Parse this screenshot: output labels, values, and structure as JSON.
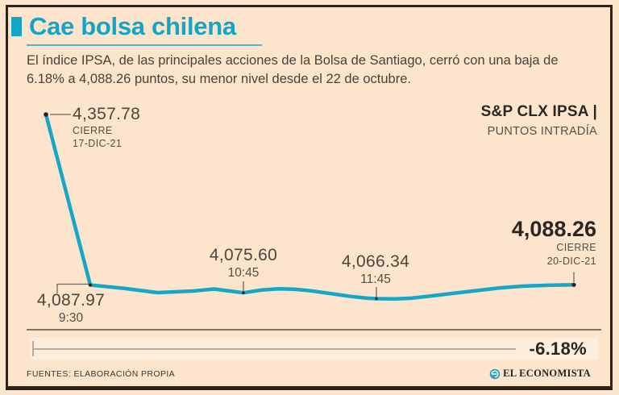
{
  "header": {
    "title": "Cae bolsa chilena",
    "subtitle": "El índice IPSA, de las principales acciones de la Bolsa de Santiago, cerró con una baja de 6.18% a 4,088.26 puntos, su menor nivel desde el 22 de octubre."
  },
  "chart_header": {
    "index_name": "S&P CLX IPSA",
    "separator": " |",
    "units_label": "PUNTOS INTRADÍA"
  },
  "chart_data": {
    "type": "line",
    "title": "S&P CLX IPSA",
    "ylabel": "PUNTOS INTRADÍA",
    "line_color": "#16a6c6",
    "grid": false,
    "legend": "none",
    "labeled_points": [
      {
        "value": 4357.78,
        "label": "4,357.78",
        "note1": "CIERRE",
        "note2": "17-DIC-21"
      },
      {
        "value": 4087.97,
        "label": "4,087.97",
        "time": "9:30"
      },
      {
        "value": 4075.6,
        "label": "4,075.60",
        "time": "10:45"
      },
      {
        "value": 4066.34,
        "label": "4,066.34",
        "time": "11:45"
      },
      {
        "value": 4088.26,
        "label": "4,088.26",
        "note1": "CIERRE",
        "note2": "20-DIC-21"
      }
    ],
    "annotations": {
      "peak": {
        "value": "4,357.78",
        "line1": "CIERRE",
        "line2": "17-DIC-21"
      },
      "open": {
        "value": "4,087.97",
        "time": "9:30"
      },
      "mid1": {
        "value": "4,075.60",
        "time": "10:45"
      },
      "mid2": {
        "value": "4,066.34",
        "time": "11:45"
      },
      "close": {
        "value": "4,088.26",
        "line1": "CIERRE",
        "line2": "20-DIC-21"
      }
    },
    "change_pct": "-6.18%",
    "ylim": [
      4060,
      4360
    ],
    "profile": [
      [
        0.0,
        4357.78
      ],
      [
        0.084,
        4087.97
      ],
      [
        0.15,
        4082.3
      ],
      [
        0.211,
        4075.9
      ],
      [
        0.279,
        4078.4
      ],
      [
        0.319,
        4081.6
      ],
      [
        0.348,
        4078.4
      ],
      [
        0.374,
        4075.6
      ],
      [
        0.409,
        4080.1
      ],
      [
        0.44,
        4082.0
      ],
      [
        0.47,
        4081.4
      ],
      [
        0.501,
        4078.8
      ],
      [
        0.539,
        4074.4
      ],
      [
        0.577,
        4069.9
      ],
      [
        0.608,
        4067.0
      ],
      [
        0.626,
        4066.34
      ],
      [
        0.661,
        4065.9
      ],
      [
        0.692,
        4067.1
      ],
      [
        0.73,
        4070.6
      ],
      [
        0.768,
        4074.4
      ],
      [
        0.814,
        4078.9
      ],
      [
        0.86,
        4083.4
      ],
      [
        0.905,
        4086.2
      ],
      [
        0.951,
        4087.4
      ],
      [
        1.0,
        4088.26
      ]
    ],
    "plot": {
      "x_start": 57,
      "x_end": 712,
      "y_ref1": {
        "value": 4357.78,
        "y": 142
      },
      "y_ref2": {
        "value": 4087.97,
        "y": 353.5
      }
    },
    "dots": [
      {
        "f": 0.0,
        "value": 4357.78,
        "r": 2.8
      },
      {
        "f": 0.084,
        "value": 4087.97,
        "r": 2.0
      },
      {
        "f": 0.374,
        "value": 4075.6,
        "r": 1.7
      },
      {
        "f": 0.626,
        "value": 4066.34,
        "r": 1.7
      },
      {
        "f": 1.0,
        "value": 4088.26,
        "r": 2.6
      }
    ]
  },
  "footer": {
    "change_label": "-6.18%",
    "sources": "FUENTES: ELABORACIÓN PROPIA",
    "brand": "EL ECONOMISTA"
  },
  "colors": {
    "background": "#fce4cd",
    "accent_teal": "#16a6c6",
    "dark_text": "#2c2622",
    "label_text": "#564e44"
  }
}
